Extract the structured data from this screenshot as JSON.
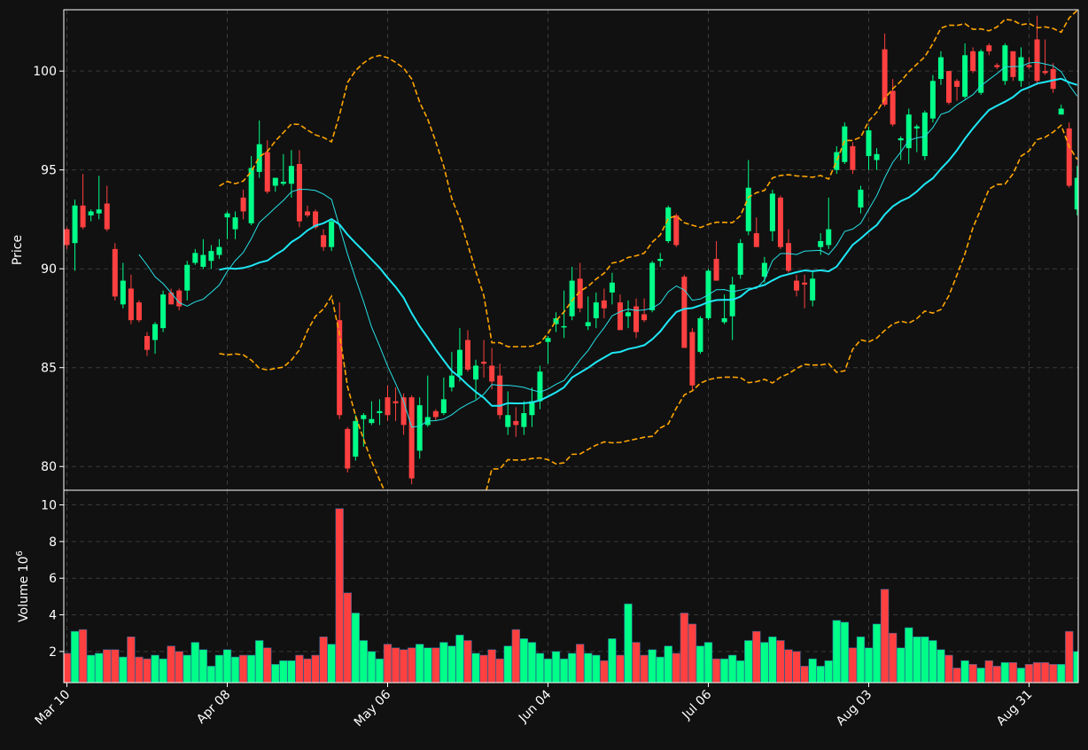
{
  "colors": {
    "background": "#111111",
    "axis": "#ffffff",
    "grid": "#3a3a3a",
    "up": "#00ff88",
    "down": "#ff4040",
    "sma_fast": "#26e0e6",
    "sma_slow": "#1ee7f5",
    "bollinger": "#ffa500"
  },
  "chart_data": [
    {
      "type": "candlestick",
      "ylabel": "Price",
      "ylim": [
        78.8,
        103.1
      ],
      "yticks": [
        80,
        85,
        90,
        95,
        100
      ],
      "x_tick_labels": [
        "Mar 10",
        "Apr 08",
        "May 06",
        "Jun 04",
        "Jul 06",
        "Aug 03",
        "Aug 31"
      ],
      "x_tick_index": [
        0,
        20,
        40,
        60,
        80,
        100,
        120
      ],
      "grid": true,
      "up_color": "#00ff88",
      "down_color": "#ff4040",
      "overlays": [
        {
          "kind": "sma_fast",
          "window": 10,
          "color": "#26e0e6"
        },
        {
          "kind": "sma_slow",
          "window": 20,
          "color": "#1ee7f5"
        },
        {
          "kind": "bollinger_upper",
          "window": 20,
          "k": 2,
          "color": "#ffa500"
        },
        {
          "kind": "bollinger_lower",
          "window": 20,
          "k": 2,
          "color": "#ffa500"
        }
      ],
      "ohlc": [
        [
          92.0,
          92.1,
          91.0,
          91.2
        ],
        [
          91.3,
          93.5,
          89.9,
          93.2
        ],
        [
          93.2,
          94.8,
          92.0,
          92.1
        ],
        [
          92.7,
          93.0,
          92.4,
          92.9
        ],
        [
          92.8,
          94.7,
          92.5,
          93.0
        ],
        [
          93.3,
          94.2,
          91.9,
          92.0
        ],
        [
          91.0,
          91.3,
          88.4,
          88.6
        ],
        [
          88.2,
          90.3,
          88.0,
          89.4
        ],
        [
          89.0,
          89.7,
          87.2,
          87.4
        ],
        [
          88.3,
          88.4,
          87.3,
          87.4
        ],
        [
          86.6,
          86.8,
          85.6,
          85.9
        ],
        [
          86.4,
          87.3,
          85.7,
          87.2
        ],
        [
          87.0,
          88.9,
          86.8,
          88.7
        ],
        [
          88.8,
          89.0,
          88.3,
          88.2
        ],
        [
          88.9,
          89.0,
          87.9,
          88.1
        ],
        [
          88.9,
          90.4,
          88.4,
          90.2
        ],
        [
          90.3,
          91.0,
          90.2,
          90.8
        ],
        [
          90.1,
          91.5,
          90.0,
          90.7
        ],
        [
          90.4,
          91.2,
          90.0,
          90.9
        ],
        [
          90.7,
          91.5,
          90.5,
          91.1
        ],
        [
          92.6,
          92.9,
          91.5,
          92.8
        ],
        [
          92.0,
          92.9,
          91.5,
          92.6
        ],
        [
          93.6,
          94.0,
          92.5,
          92.9
        ],
        [
          92.3,
          95.7,
          92.2,
          95.1
        ],
        [
          94.9,
          97.5,
          94.6,
          96.3
        ],
        [
          95.9,
          96.5,
          93.8,
          93.9
        ],
        [
          94.2,
          94.6,
          93.9,
          94.6
        ],
        [
          94.3,
          95.8,
          94.2,
          94.4
        ],
        [
          94.3,
          96.0,
          93.6,
          95.2
        ],
        [
          95.3,
          96.0,
          92.1,
          92.4
        ],
        [
          92.9,
          93.2,
          92.6,
          92.7
        ],
        [
          92.9,
          93.0,
          92.0,
          92.1
        ],
        [
          91.7,
          92.0,
          90.9,
          91.1
        ],
        [
          91.1,
          92.5,
          90.9,
          92.4
        ],
        [
          87.4,
          88.3,
          82.4,
          82.6
        ],
        [
          81.9,
          82.0,
          79.7,
          79.9
        ],
        [
          80.5,
          82.6,
          80.3,
          82.3
        ],
        [
          82.4,
          82.7,
          81.0,
          82.6
        ],
        [
          82.2,
          83.3,
          82.1,
          82.4
        ],
        [
          82.7,
          83.4,
          82.1,
          82.8
        ],
        [
          83.5,
          84.1,
          82.3,
          82.6
        ],
        [
          83.3,
          84.0,
          82.3,
          83.2
        ],
        [
          83.5,
          83.7,
          81.6,
          82.1
        ],
        [
          83.5,
          83.6,
          79.1,
          79.4
        ],
        [
          80.8,
          83.5,
          80.4,
          83.1
        ],
        [
          82.1,
          84.6,
          82.0,
          82.5
        ],
        [
          82.8,
          82.9,
          82.3,
          82.5
        ],
        [
          82.7,
          84.5,
          82.6,
          83.4
        ],
        [
          84.0,
          85.8,
          83.8,
          84.6
        ],
        [
          84.6,
          87.0,
          84.3,
          85.9
        ],
        [
          86.4,
          86.9,
          84.8,
          84.9
        ],
        [
          84.4,
          85.4,
          83.4,
          85.1
        ],
        [
          85.3,
          86.4,
          84.5,
          85.2
        ],
        [
          85.1,
          86.0,
          83.9,
          84.3
        ],
        [
          84.6,
          85.2,
          82.4,
          82.6
        ],
        [
          82.0,
          83.8,
          81.6,
          82.6
        ],
        [
          82.3,
          83.0,
          81.5,
          82.1
        ],
        [
          82.0,
          83.3,
          81.6,
          82.7
        ],
        [
          82.6,
          84.0,
          82.0,
          83.3
        ],
        [
          83.3,
          85.1,
          82.9,
          84.8
        ],
        [
          86.3,
          86.6,
          85.2,
          86.5
        ],
        [
          87.2,
          87.8,
          86.8,
          87.5
        ],
        [
          87.1,
          88.9,
          86.5,
          87.1
        ],
        [
          87.6,
          90.1,
          87.4,
          89.4
        ],
        [
          89.5,
          90.3,
          87.8,
          88.0
        ],
        [
          87.1,
          88.6,
          86.9,
          87.3
        ],
        [
          87.5,
          88.8,
          87.0,
          88.3
        ],
        [
          88.4,
          89.0,
          87.5,
          88.0
        ],
        [
          88.8,
          89.8,
          88.2,
          89.3
        ],
        [
          88.3,
          88.7,
          86.9,
          86.9
        ],
        [
          87.6,
          88.4,
          87.0,
          87.8
        ],
        [
          88.1,
          88.5,
          86.5,
          86.8
        ],
        [
          87.7,
          88.5,
          87.3,
          87.4
        ],
        [
          87.9,
          90.4,
          87.8,
          90.3
        ],
        [
          90.4,
          90.8,
          90.1,
          90.5
        ],
        [
          91.4,
          93.2,
          91.3,
          93.1
        ],
        [
          92.7,
          92.8,
          91.1,
          91.2
        ],
        [
          89.6,
          89.7,
          86.0,
          86.0
        ],
        [
          86.8,
          87.0,
          83.8,
          84.1
        ],
        [
          85.8,
          87.6,
          85.7,
          87.5
        ],
        [
          87.5,
          90.0,
          87.4,
          89.9
        ],
        [
          90.5,
          91.4,
          89.4,
          89.4
        ],
        [
          87.3,
          88.7,
          87.2,
          87.5
        ],
        [
          87.6,
          89.6,
          86.4,
          89.2
        ],
        [
          89.7,
          91.5,
          89.5,
          91.3
        ],
        [
          91.9,
          95.5,
          91.7,
          94.1
        ],
        [
          91.8,
          92.6,
          91.1,
          91.1
        ],
        [
          89.6,
          90.6,
          89.3,
          90.3
        ],
        [
          91.9,
          94.0,
          91.4,
          93.8
        ],
        [
          93.6,
          93.7,
          91.0,
          91.1
        ],
        [
          91.3,
          92.0,
          89.8,
          89.9
        ],
        [
          89.4,
          89.7,
          88.6,
          88.9
        ],
        [
          89.3,
          89.7,
          88.0,
          89.2
        ],
        [
          88.4,
          89.9,
          88.1,
          89.5
        ],
        [
          91.1,
          91.8,
          90.7,
          91.4
        ],
        [
          91.2,
          93.6,
          91.0,
          92.0
        ],
        [
          95.0,
          96.2,
          94.8,
          95.9
        ],
        [
          95.4,
          97.4,
          95.3,
          97.2
        ],
        [
          96.2,
          96.4,
          94.8,
          95.0
        ],
        [
          93.1,
          94.2,
          92.8,
          94.0
        ],
        [
          95.7,
          97.2,
          95.0,
          97.0
        ],
        [
          95.5,
          96.1,
          95.0,
          95.8
        ],
        [
          101.1,
          101.9,
          98.2,
          98.3
        ],
        [
          99.0,
          99.6,
          97.2,
          97.3
        ],
        [
          96.5,
          96.7,
          95.5,
          96.6
        ],
        [
          96.1,
          98.1,
          95.3,
          97.8
        ],
        [
          97.1,
          97.3,
          95.9,
          97.2
        ],
        [
          95.7,
          98.0,
          95.5,
          97.9
        ],
        [
          97.6,
          99.8,
          97.4,
          99.5
        ],
        [
          99.6,
          101.0,
          99.3,
          100.7
        ],
        [
          100.0,
          100.0,
          98.3,
          98.4
        ],
        [
          99.5,
          99.6,
          98.5,
          99.2
        ],
        [
          98.7,
          101.4,
          98.6,
          100.8
        ],
        [
          101.0,
          101.2,
          99.9,
          100.0
        ],
        [
          98.9,
          101.1,
          98.8,
          101.0
        ],
        [
          101.3,
          101.4,
          100.8,
          101.0
        ],
        [
          100.3,
          100.4,
          100.1,
          100.2
        ],
        [
          99.5,
          101.4,
          99.3,
          101.3
        ],
        [
          101.0,
          101.0,
          99.5,
          99.7
        ],
        [
          99.5,
          101.2,
          99.2,
          100.7
        ],
        [
          100.3,
          100.7,
          100.1,
          100.2
        ],
        [
          101.6,
          102.8,
          99.3,
          99.5
        ],
        [
          100.0,
          101.6,
          99.8,
          99.9
        ],
        [
          100.1,
          100.4,
          98.9,
          99.1
        ],
        [
          97.8,
          98.3,
          97.8,
          98.1
        ],
        [
          97.1,
          97.4,
          94.1,
          94.2
        ],
        [
          93.0,
          95.2,
          92.7,
          94.6
        ]
      ]
    },
    {
      "type": "bar",
      "ylabel": "Volume",
      "ylabel_exponent": "6",
      "unit_multiplier": 1000000,
      "ylim": [
        0.3,
        10.8
      ],
      "yticks": [
        2,
        4,
        6,
        8,
        10
      ],
      "grid": true,
      "values": [
        1.9,
        3.1,
        3.2,
        1.8,
        1.9,
        2.1,
        2.1,
        1.7,
        2.8,
        1.7,
        1.6,
        1.8,
        1.6,
        2.3,
        2.0,
        1.8,
        2.5,
        2.1,
        1.2,
        1.8,
        2.1,
        1.7,
        1.8,
        1.8,
        2.6,
        2.2,
        1.3,
        1.5,
        1.5,
        1.8,
        1.6,
        1.8,
        2.8,
        2.4,
        9.8,
        5.2,
        4.1,
        2.6,
        2.0,
        1.6,
        2.4,
        2.2,
        2.1,
        2.2,
        2.4,
        2.2,
        2.2,
        2.5,
        2.3,
        2.9,
        2.6,
        1.9,
        1.8,
        2.1,
        1.6,
        2.3,
        3.2,
        2.7,
        2.5,
        1.9,
        1.6,
        2.0,
        1.6,
        1.9,
        2.4,
        1.9,
        1.8,
        1.5,
        2.7,
        1.8,
        4.6,
        2.5,
        1.8,
        2.1,
        1.7,
        2.3,
        1.9,
        4.1,
        3.5,
        2.3,
        2.5,
        1.6,
        1.6,
        1.8,
        1.5,
        2.6,
        3.1,
        2.5,
        2.8,
        2.6,
        2.1,
        2.0,
        1.2,
        1.6,
        1.2,
        1.5,
        3.7,
        3.6,
        2.2,
        2.8,
        2.2,
        3.5,
        5.4,
        3.0,
        2.2,
        3.3,
        2.8,
        2.8,
        2.6,
        2.1,
        1.8,
        1.1,
        1.5,
        1.3,
        1.1,
        1.5,
        1.2,
        1.4,
        1.4,
        1.1,
        1.3,
        1.4,
        1.4,
        1.3,
        1.3,
        3.1,
        2.0
      ]
    }
  ]
}
